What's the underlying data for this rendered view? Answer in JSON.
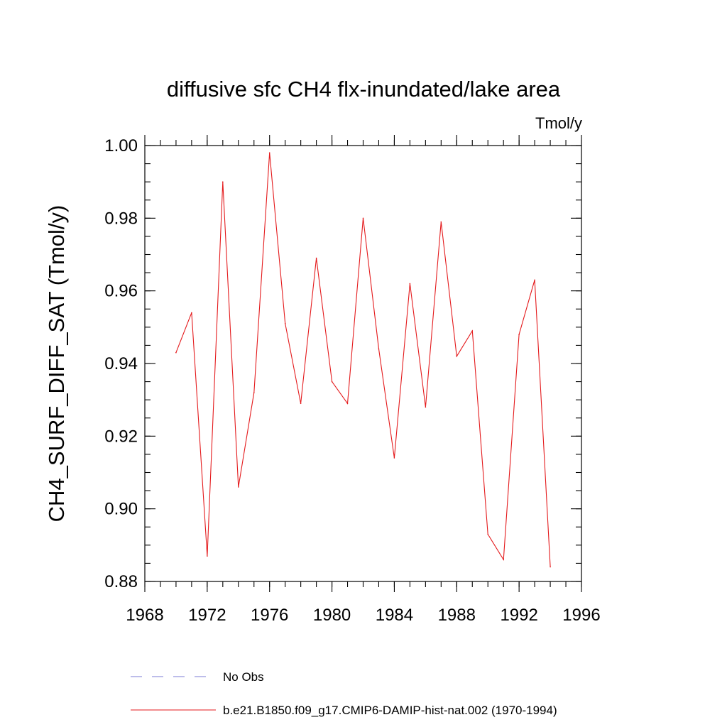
{
  "chart_data": {
    "type": "line",
    "title": "diffusive sfc CH4 flx-inundated/lake area",
    "units": "Tmol/y",
    "ylabel": "CH4_SURF_DIFF_SAT  (Tmol/y)",
    "xlabel": "",
    "xlim": [
      1968,
      1996
    ],
    "ylim": [
      0.88,
      1.0
    ],
    "x_major_ticks": [
      1968,
      1972,
      1976,
      1980,
      1984,
      1988,
      1992,
      1996
    ],
    "x_tick_labels": [
      "1968",
      "1972",
      "1976",
      "1980",
      "1984",
      "1988",
      "1992",
      "1996"
    ],
    "x_minor_step": 1,
    "y_major_ticks": [
      0.88,
      0.9,
      0.92,
      0.94,
      0.96,
      0.98,
      1.0
    ],
    "y_tick_labels": [
      "0.88",
      "0.90",
      "0.92",
      "0.94",
      "0.96",
      "0.98",
      "1.00"
    ],
    "y_minor_step": 0.005,
    "grid": false,
    "legend_position": "bottom",
    "series": [
      {
        "name": "b.e21.B1850.f09_g17.CMIP6-DAMIP-hist-nat.002 (1970-1994)",
        "color": "#e41a1c",
        "dash": "solid",
        "x": [
          1970,
          1971,
          1972,
          1973,
          1974,
          1975,
          1976,
          1977,
          1978,
          1979,
          1980,
          1981,
          1982,
          1983,
          1984,
          1985,
          1986,
          1987,
          1988,
          1989,
          1990,
          1991,
          1992,
          1993,
          1994
        ],
        "y": [
          0.943,
          0.954,
          0.887,
          0.99,
          0.906,
          0.932,
          0.998,
          0.951,
          0.929,
          0.969,
          0.935,
          0.929,
          0.98,
          0.944,
          0.914,
          0.962,
          0.928,
          0.979,
          0.942,
          0.949,
          0.893,
          0.886,
          0.948,
          0.963,
          0.884
        ]
      }
    ],
    "legend": [
      {
        "label": "No Obs",
        "color": "#7b7bd6",
        "dash": "dashed"
      },
      {
        "label": "b.e21.B1850.f09_g17.CMIP6-DAMIP-hist-nat.002 (1970-1994)",
        "color": "#e41a1c",
        "dash": "solid"
      }
    ]
  }
}
